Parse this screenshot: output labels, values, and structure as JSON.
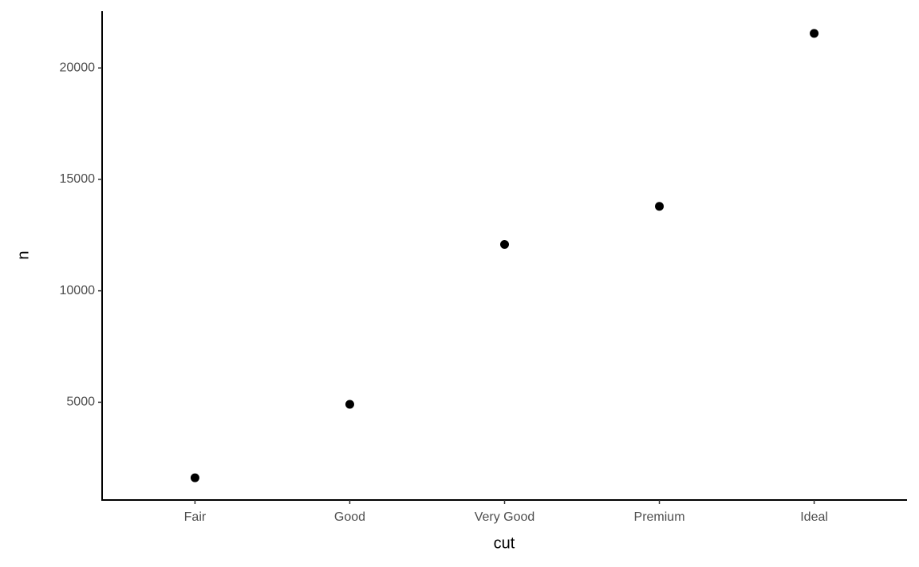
{
  "chart_data": {
    "type": "scatter",
    "x_label": "cut",
    "y_label": "n",
    "categories": [
      "Fair",
      "Good",
      "Very Good",
      "Premium",
      "Ideal"
    ],
    "values": [
      1610,
      4906,
      12082,
      13791,
      21551
    ],
    "color": "#000000",
    "ylim": [
      613,
      22548
    ],
    "yticks": [
      5000,
      10000,
      15000,
      20000
    ],
    "grid": false
  }
}
